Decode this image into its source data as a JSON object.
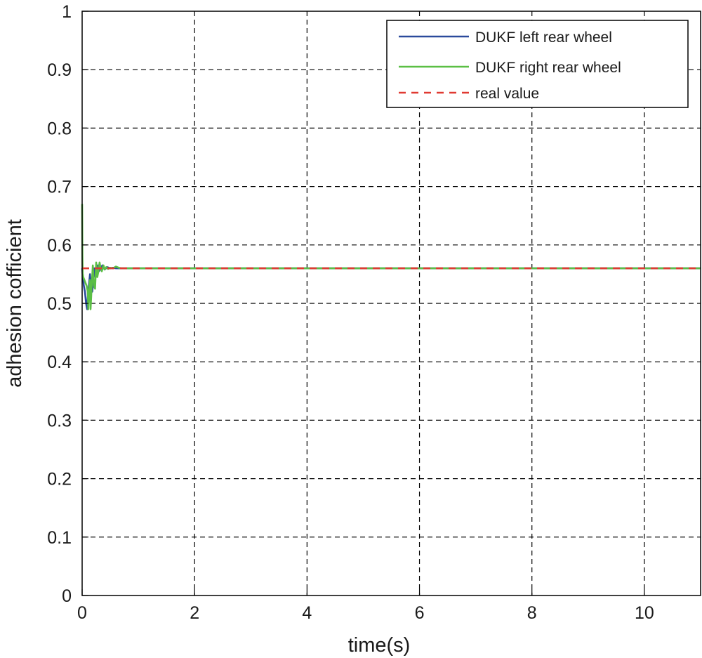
{
  "chart_data": {
    "type": "line",
    "xlabel": "time(s)",
    "ylabel": "adhesion cofficient",
    "xlim": [
      0,
      11
    ],
    "ylim": [
      0,
      1
    ],
    "xticks": [
      0,
      2,
      4,
      6,
      8,
      10
    ],
    "xtick_labels": [
      "0",
      "2",
      "4",
      "6",
      "8",
      "10"
    ],
    "yticks": [
      0,
      0.1,
      0.2,
      0.3,
      0.4,
      0.5,
      0.6,
      0.7,
      0.8,
      0.9,
      1
    ],
    "ytick_labels": [
      "0",
      "0.1",
      "0.2",
      "0.3",
      "0.4",
      "0.5",
      "0.6",
      "0.7",
      "0.8",
      "0.9",
      "1"
    ],
    "grid": true,
    "grid_style": "dashed",
    "legend_position": "top-right",
    "series": [
      {
        "name": "DUKF left rear wheel",
        "color": "#2b4a9c",
        "style": "solid",
        "x": [
          0,
          0.01,
          0.03,
          0.05,
          0.07,
          0.09,
          0.1,
          0.12,
          0.14,
          0.16,
          0.18,
          0.2,
          0.22,
          0.24,
          0.26,
          0.28,
          0.3,
          0.33,
          0.36,
          0.4,
          0.45,
          0.5,
          0.55,
          0.6,
          0.7,
          0.8,
          1,
          2,
          4,
          6,
          8,
          10,
          11
        ],
        "y": [
          0.56,
          0.55,
          0.53,
          0.52,
          0.5,
          0.49,
          0.51,
          0.53,
          0.55,
          0.525,
          0.52,
          0.54,
          0.56,
          0.545,
          0.555,
          0.565,
          0.555,
          0.56,
          0.565,
          0.558,
          0.562,
          0.56,
          0.561,
          0.56,
          0.56,
          0.56,
          0.56,
          0.56,
          0.56,
          0.56,
          0.56,
          0.56,
          0.56
        ]
      },
      {
        "name": "DUKF right rear wheel",
        "color": "#5bbf45",
        "style": "solid",
        "x": [
          0,
          0.005,
          0.01,
          0.02,
          0.04,
          0.06,
          0.08,
          0.1,
          0.11,
          0.12,
          0.14,
          0.15,
          0.17,
          0.19,
          0.21,
          0.23,
          0.25,
          0.27,
          0.29,
          0.31,
          0.33,
          0.35,
          0.38,
          0.4,
          0.43,
          0.46,
          0.5,
          0.55,
          0.6,
          0.65,
          0.7,
          0.8,
          1,
          2,
          4,
          6,
          8,
          10,
          11
        ],
        "y": [
          0.67,
          0.58,
          0.55,
          0.545,
          0.54,
          0.535,
          0.53,
          0.52,
          0.49,
          0.52,
          0.54,
          0.49,
          0.53,
          0.565,
          0.53,
          0.525,
          0.57,
          0.545,
          0.555,
          0.57,
          0.56,
          0.555,
          0.565,
          0.558,
          0.562,
          0.559,
          0.561,
          0.56,
          0.563,
          0.561,
          0.56,
          0.56,
          0.56,
          0.56,
          0.56,
          0.56,
          0.56,
          0.56,
          0.56
        ]
      },
      {
        "name": "real value",
        "color": "#e03a32",
        "style": "dashed",
        "x": [
          0,
          11
        ],
        "y": [
          0.56,
          0.56
        ]
      }
    ]
  }
}
